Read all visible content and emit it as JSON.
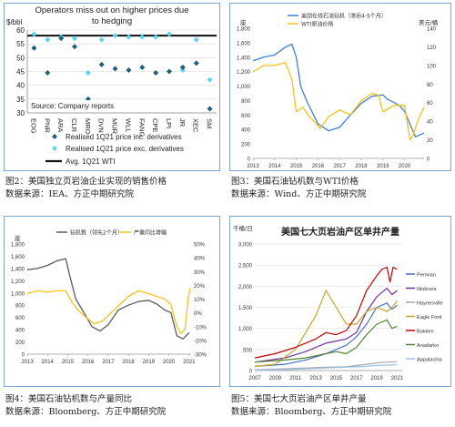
{
  "captions": [
    {
      "fig": "图2：美国独立页岩油企业实现的销售价格",
      "src": "数据来源：IEA、方正中期研究院"
    },
    {
      "fig": "图3：美国石油钻机数与WTI价格",
      "src": "数据来源：Wind、方正中期研究院"
    },
    {
      "fig": "图4：美国石油钻机数与产量同比",
      "src": "数据来源：Bloomberg、方正中期研究院"
    },
    {
      "fig": "图5：美国七大页岩油产区单井产量",
      "src": "数据来源：Bloomberg、方正中期研究院"
    }
  ],
  "colors": {
    "frame": "#7aa6d6",
    "diamond": "#1f5f7a",
    "light_diamond": "#5fd3f0",
    "blue_line": "#3f7fd0",
    "yellow_line": "#f2c31a",
    "dark_line": "#5a5a5a"
  },
  "chart_data": [
    {
      "type": "scatter",
      "title": "Operators miss out on higher prices due to hedging",
      "ylabel": "$/bbl",
      "ylim": [
        30,
        60
      ],
      "yticks": [
        30,
        35,
        40,
        45,
        50,
        55,
        60
      ],
      "categories": [
        "EOG",
        "PNR",
        "ARA",
        "CLR",
        "MRO",
        "DVN",
        "MUR",
        "WLL",
        "FANG",
        "CPE",
        "LPI",
        "JR",
        "XEC",
        "SM"
      ],
      "series": [
        {
          "name": "Realised 1Q21 price inc. derivatives",
          "marker": "diamond-dark",
          "values": [
            53.5,
            44.5,
            57,
            54,
            35,
            47.5,
            46,
            45.5,
            46.5,
            44.5,
            45,
            46.5,
            48,
            31.5
          ]
        },
        {
          "name": "Realised 1Q21 price exc. derivatives",
          "marker": "diamond-light",
          "values": [
            58.5,
            56.5,
            57.5,
            57,
            44.5,
            56.5,
            58,
            57.5,
            57.5,
            57.5,
            58.5,
            45.5,
            56.5,
            42
          ]
        },
        {
          "name": "Avg. 1Q21 WTI",
          "marker": "line",
          "value": 58
        }
      ],
      "source_note": "Source: Company reports"
    },
    {
      "type": "line",
      "left_unit": "座",
      "right_unit": "美元/桶",
      "legend": [
        "美国在线石油钻机（滞后4-5个月）",
        "WTI原油价格"
      ],
      "x_ticks": [
        "2013",
        "2014",
        "2015",
        "2016",
        "2017",
        "2018",
        "2019",
        "2020"
      ],
      "left_ticks": [
        "0",
        "200",
        "400",
        "600",
        "800",
        "1,000",
        "1,200",
        "1,400",
        "1,600",
        "1,800"
      ],
      "right_ticks": [
        "0",
        "20",
        "40",
        "60",
        "80",
        "100",
        "120",
        "140"
      ],
      "ylim_left": [
        0,
        1800
      ],
      "ylim_right": [
        0,
        140
      ],
      "xlim": [
        2013,
        2020.9
      ],
      "series": [
        {
          "name": "美国在线石油钻机（滞后4-5个月）",
          "axis": "left",
          "x": [
            2013,
            2013.5,
            2014,
            2014.5,
            2014.8,
            2015.0,
            2015.2,
            2015.5,
            2015.8,
            2016.0,
            2016.5,
            2017.0,
            2017.5,
            2018.0,
            2018.5,
            2019.0,
            2019.2,
            2019.4,
            2019.6,
            2019.8,
            2020.0,
            2020.5,
            2020.9
          ],
          "y": [
            1350,
            1400,
            1430,
            1540,
            1580,
            1400,
            1000,
            780,
            600,
            480,
            380,
            430,
            600,
            760,
            860,
            880,
            820,
            790,
            760,
            720,
            650,
            300,
            350
          ]
        },
        {
          "name": "WTI原油价格",
          "axis": "right",
          "x": [
            2013,
            2013.5,
            2014,
            2014.5,
            2014.8,
            2015.0,
            2015.3,
            2015.6,
            2015.9,
            2016.1,
            2016.5,
            2017.0,
            2017.5,
            2018.0,
            2018.5,
            2018.8,
            2019.0,
            2019.5,
            2020.0,
            2020.25,
            2020.4,
            2020.6,
            2020.9
          ],
          "y": [
            93,
            100,
            100,
            103,
            85,
            50,
            55,
            45,
            38,
            32,
            45,
            52,
            47,
            62,
            70,
            68,
            50,
            57,
            57,
            20,
            25,
            40,
            55
          ]
        }
      ]
    },
    {
      "type": "line",
      "left_unit": "座",
      "legend": [
        "钻机数（领先2个月）",
        "产量同比增幅"
      ],
      "x_ticks": [
        "2013",
        "2014",
        "2015",
        "2016",
        "2017",
        "2018",
        "2019",
        "2020",
        "2021"
      ],
      "left_ticks": [
        "0",
        "200",
        "400",
        "600",
        "800",
        "1,000",
        "1,200",
        "1,400",
        "1,600",
        "1,800"
      ],
      "right_ticks": [
        "-30%",
        "-20%",
        "-10%",
        "0%",
        "10%",
        "20%",
        "30%",
        "40%",
        "50%"
      ],
      "ylim_left": [
        0,
        1800
      ],
      "ylim_right": [
        -30,
        50
      ],
      "xlim": [
        2013,
        2021.1
      ],
      "series": [
        {
          "name": "钻机数（领先2个月）",
          "axis": "left",
          "x": [
            2013,
            2013.5,
            2014,
            2014.5,
            2014.9,
            2015.1,
            2015.4,
            2015.8,
            2016.2,
            2016.6,
            2017.0,
            2017.5,
            2018.0,
            2018.5,
            2019.0,
            2019.4,
            2019.8,
            2020.1,
            2020.4,
            2020.7,
            2021.0
          ],
          "y": [
            1380,
            1400,
            1450,
            1530,
            1560,
            1280,
            900,
            680,
            450,
            380,
            480,
            720,
            800,
            860,
            880,
            820,
            720,
            680,
            300,
            250,
            350
          ]
        },
        {
          "name": "产量同比增幅",
          "axis": "right",
          "x": [
            2013,
            2013.5,
            2014,
            2014.5,
            2014.9,
            2015.2,
            2015.5,
            2015.9,
            2016.3,
            2016.7,
            2017.0,
            2017.5,
            2018.0,
            2018.5,
            2019.0,
            2019.4,
            2019.8,
            2020.1,
            2020.4,
            2020.6,
            2020.8,
            2020.95,
            2021.05
          ],
          "y": [
            14,
            16,
            15,
            16,
            16,
            8,
            2,
            -3,
            -8,
            -6,
            -2,
            5,
            12,
            16,
            14,
            12,
            10,
            6,
            -10,
            -15,
            -12,
            10,
            18
          ]
        }
      ]
    },
    {
      "type": "line",
      "title": "美国七大页岩油产区单井产量",
      "ylabel": "千桶/日",
      "ylim": [
        0,
        3000
      ],
      "y_ticks": [
        "0",
        "500",
        "1,000",
        "1,500",
        "2,000",
        "2,500",
        "3,000"
      ],
      "x_ticks": [
        "2007",
        "2009",
        "2011",
        "2013",
        "2015",
        "2017",
        "2019",
        "2021"
      ],
      "xlim": [
        2007,
        2021.5
      ],
      "series": [
        {
          "name": "Permian",
          "color": "#4472c4",
          "x": [
            2007,
            2010,
            2012,
            2014,
            2015,
            2016,
            2017,
            2018,
            2019,
            2020,
            2020.5,
            2021
          ],
          "y": [
            100,
            150,
            250,
            400,
            500,
            600,
            800,
            1100,
            1500,
            1600,
            1450,
            1550
          ]
        },
        {
          "name": "Niobrara",
          "color": "#7030a0",
          "x": [
            2007,
            2010,
            2012,
            2014,
            2015,
            2016,
            2017,
            2018,
            2019,
            2020,
            2020.5,
            2021
          ],
          "y": [
            200,
            300,
            450,
            650,
            700,
            750,
            900,
            1400,
            1750,
            1950,
            1800,
            1900
          ]
        },
        {
          "name": "Haynesville",
          "color": "#a5a5a5",
          "x": [
            2007,
            2010,
            2012,
            2014,
            2016,
            2018,
            2019,
            2020,
            2021
          ],
          "y": [
            20,
            40,
            60,
            80,
            90,
            150,
            180,
            200,
            210
          ]
        },
        {
          "name": "Eagle Ford",
          "color": "#c9a227",
          "x": [
            2007,
            2009,
            2011,
            2012,
            2013,
            2014,
            2015,
            2016,
            2017,
            2018,
            2019,
            2020,
            2020.5,
            2021
          ],
          "y": [
            100,
            150,
            500,
            900,
            1300,
            1900,
            1500,
            1100,
            1100,
            1400,
            1500,
            1400,
            1500,
            1650
          ]
        },
        {
          "name": "Bakken",
          "color": "#c00000",
          "x": [
            2007,
            2009,
            2011,
            2013,
            2014,
            2015,
            2016,
            2017,
            2018,
            2019,
            2019.5,
            2020,
            2020.3,
            2020.6,
            2021
          ],
          "y": [
            300,
            400,
            550,
            750,
            900,
            850,
            950,
            1300,
            1900,
            2250,
            2400,
            2450,
            2100,
            2450,
            2400
          ]
        },
        {
          "name": "Anadarko",
          "color": "#548235",
          "x": [
            2007,
            2010,
            2012,
            2014,
            2015,
            2016,
            2017,
            2018,
            2019,
            2020,
            2020.5,
            2021
          ],
          "y": [
            200,
            250,
            300,
            400,
            450,
            400,
            550,
            850,
            1100,
            1200,
            1000,
            1050
          ]
        },
        {
          "name": "Appalachia",
          "color": "#9dc3e6",
          "x": [
            2007,
            2010,
            2012,
            2014,
            2016,
            2018,
            2019,
            2020,
            2021
          ],
          "y": [
            10,
            20,
            40,
            60,
            80,
            100,
            120,
            130,
            140
          ]
        }
      ]
    }
  ]
}
